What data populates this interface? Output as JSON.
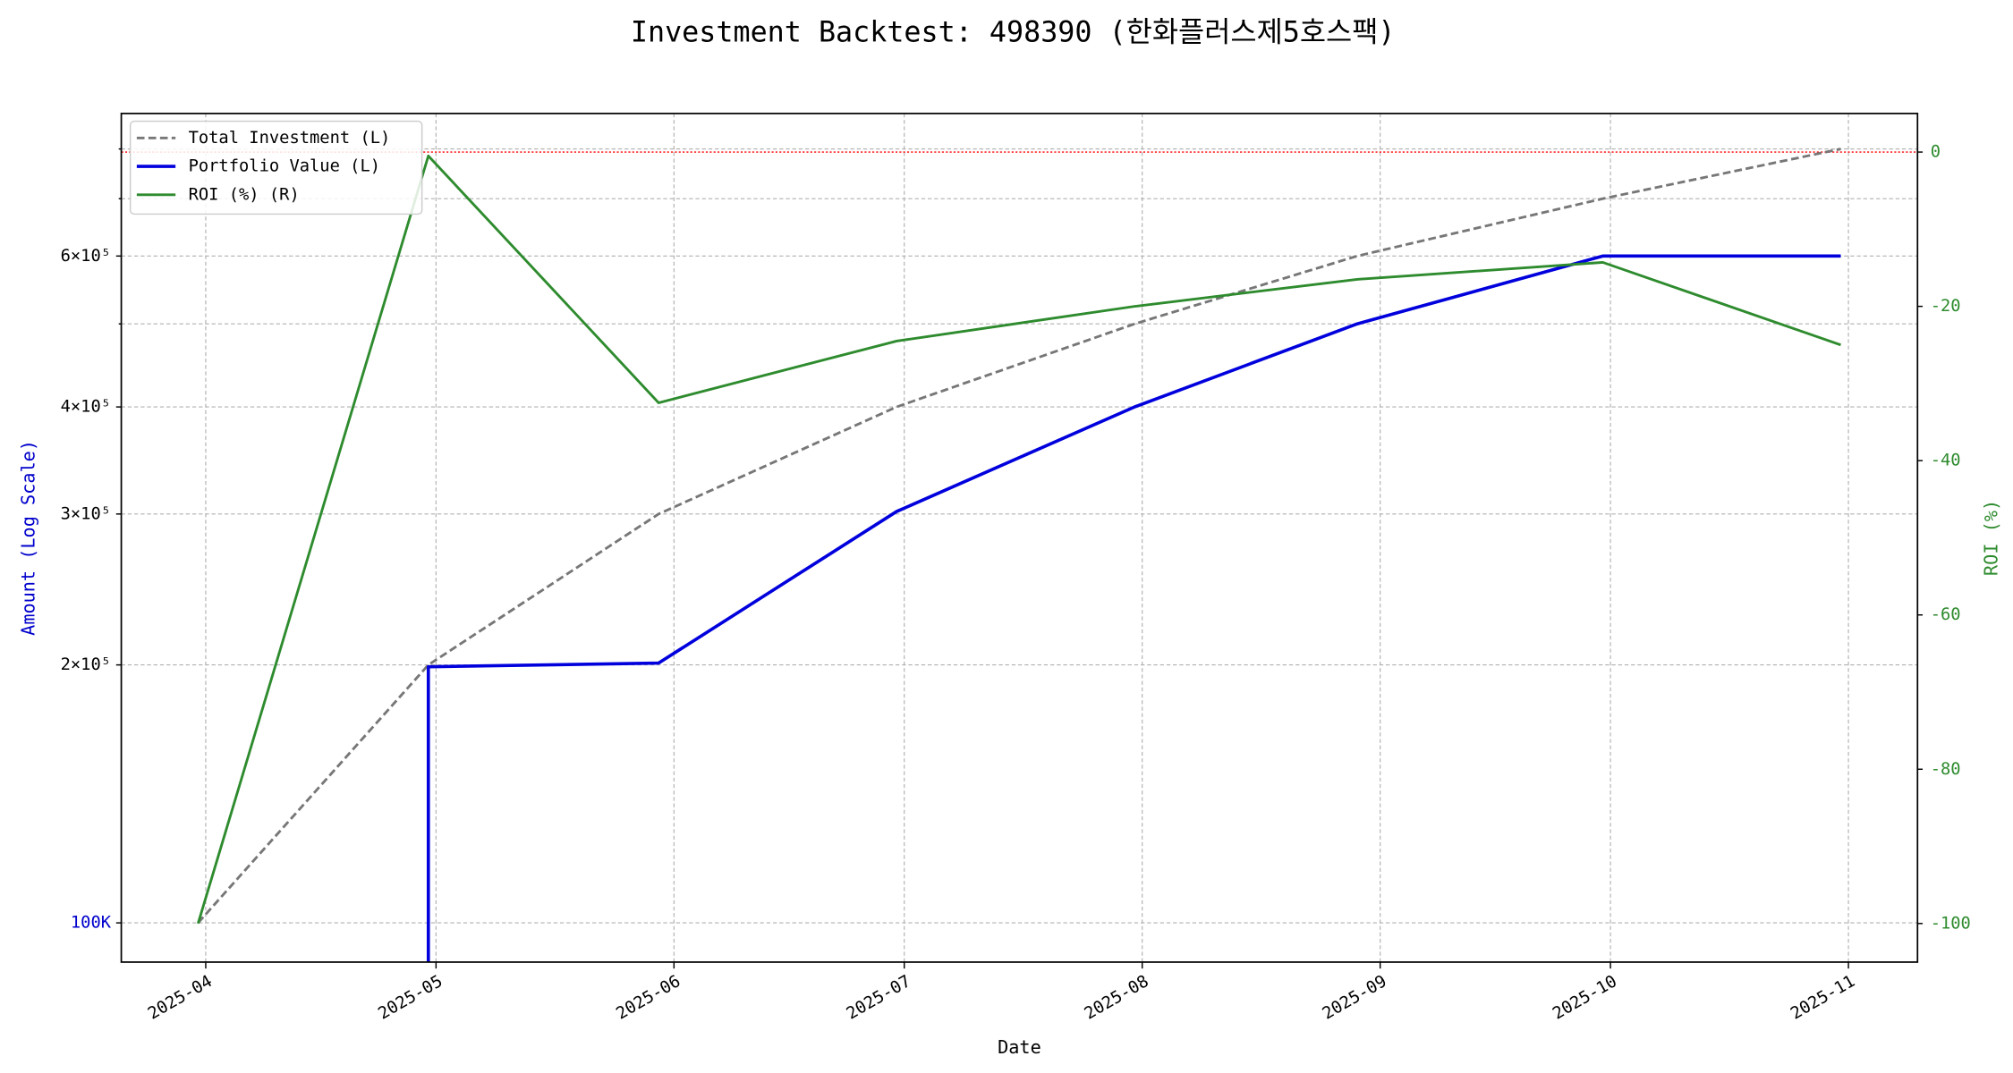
{
  "chart_data": {
    "type": "line",
    "title": "Investment Backtest: 498390 (한화플러스제5호스팩)",
    "x_label": "Date",
    "y_label": "Amount (Log Scale)",
    "y_label_color": "#0000cc",
    "y2_label": "ROI (%)",
    "y2_color": "#2e8b2e",
    "y_scale": "log",
    "grid": true,
    "legend": "upper left",
    "xlim": [
      "2025-03-21",
      "2025-11-10"
    ],
    "xticks": [
      "2025-04",
      "2025-05",
      "2025-06",
      "2025-07",
      "2025-08",
      "2025-09",
      "2025-10",
      "2025-11"
    ],
    "ylim": [
      90000,
      880000
    ],
    "yticks": [
      {
        "value": 100000,
        "label": "100K",
        "color": "#0000cc"
      },
      {
        "value": 200000,
        "label": "2×10⁵"
      },
      {
        "value": 300000,
        "label": "3×10⁵"
      },
      {
        "value": 400000,
        "label": "4×10⁵"
      },
      {
        "value": 600000,
        "label": "6×10⁵"
      }
    ],
    "y_minor_grid": [
      500000,
      700000,
      800000
    ],
    "y2lim": [
      -105,
      5
    ],
    "y2ticks": [
      0,
      -20,
      -40,
      -60,
      -80,
      -100
    ],
    "reference_lines": [
      {
        "axis": "y2",
        "value": 0,
        "color": "#ff0000"
      }
    ],
    "series": [
      {
        "name": "Total Investment (L)",
        "color": "#777777",
        "dash": true,
        "width": 2,
        "x": [
          "2025-03-31",
          "2025-04-30",
          "2025-05-30",
          "2025-06-30",
          "2025-07-31",
          "2025-08-29",
          "2025-09-30",
          "2025-10-31"
        ],
        "values": [
          100000,
          200000,
          300000,
          400000,
          500000,
          600000,
          700000,
          800000
        ]
      },
      {
        "name": "Portfolio Value (L)",
        "color": "#0000dd",
        "width": 2.5,
        "x": [
          "2025-04-30",
          "2025-04-30",
          "2025-05-30",
          "2025-06-30",
          "2025-07-31",
          "2025-08-29",
          "2025-09-30",
          "2025-10-31"
        ],
        "values": [
          0,
          199000,
          201000,
          302000,
          400000,
          500000,
          600000,
          600000
        ]
      },
      {
        "name": "ROI (%) (R)",
        "color": "#2e8b2e",
        "width": 2,
        "axis": "y2",
        "x": [
          "2025-03-31",
          "2025-04-30",
          "2025-05-30",
          "2025-06-30",
          "2025-07-31",
          "2025-08-29",
          "2025-09-30",
          "2025-10-31"
        ],
        "values": [
          -100,
          -0.5,
          -32.5,
          -24.5,
          -20,
          -16.5,
          -14.3,
          -25
        ]
      }
    ]
  }
}
